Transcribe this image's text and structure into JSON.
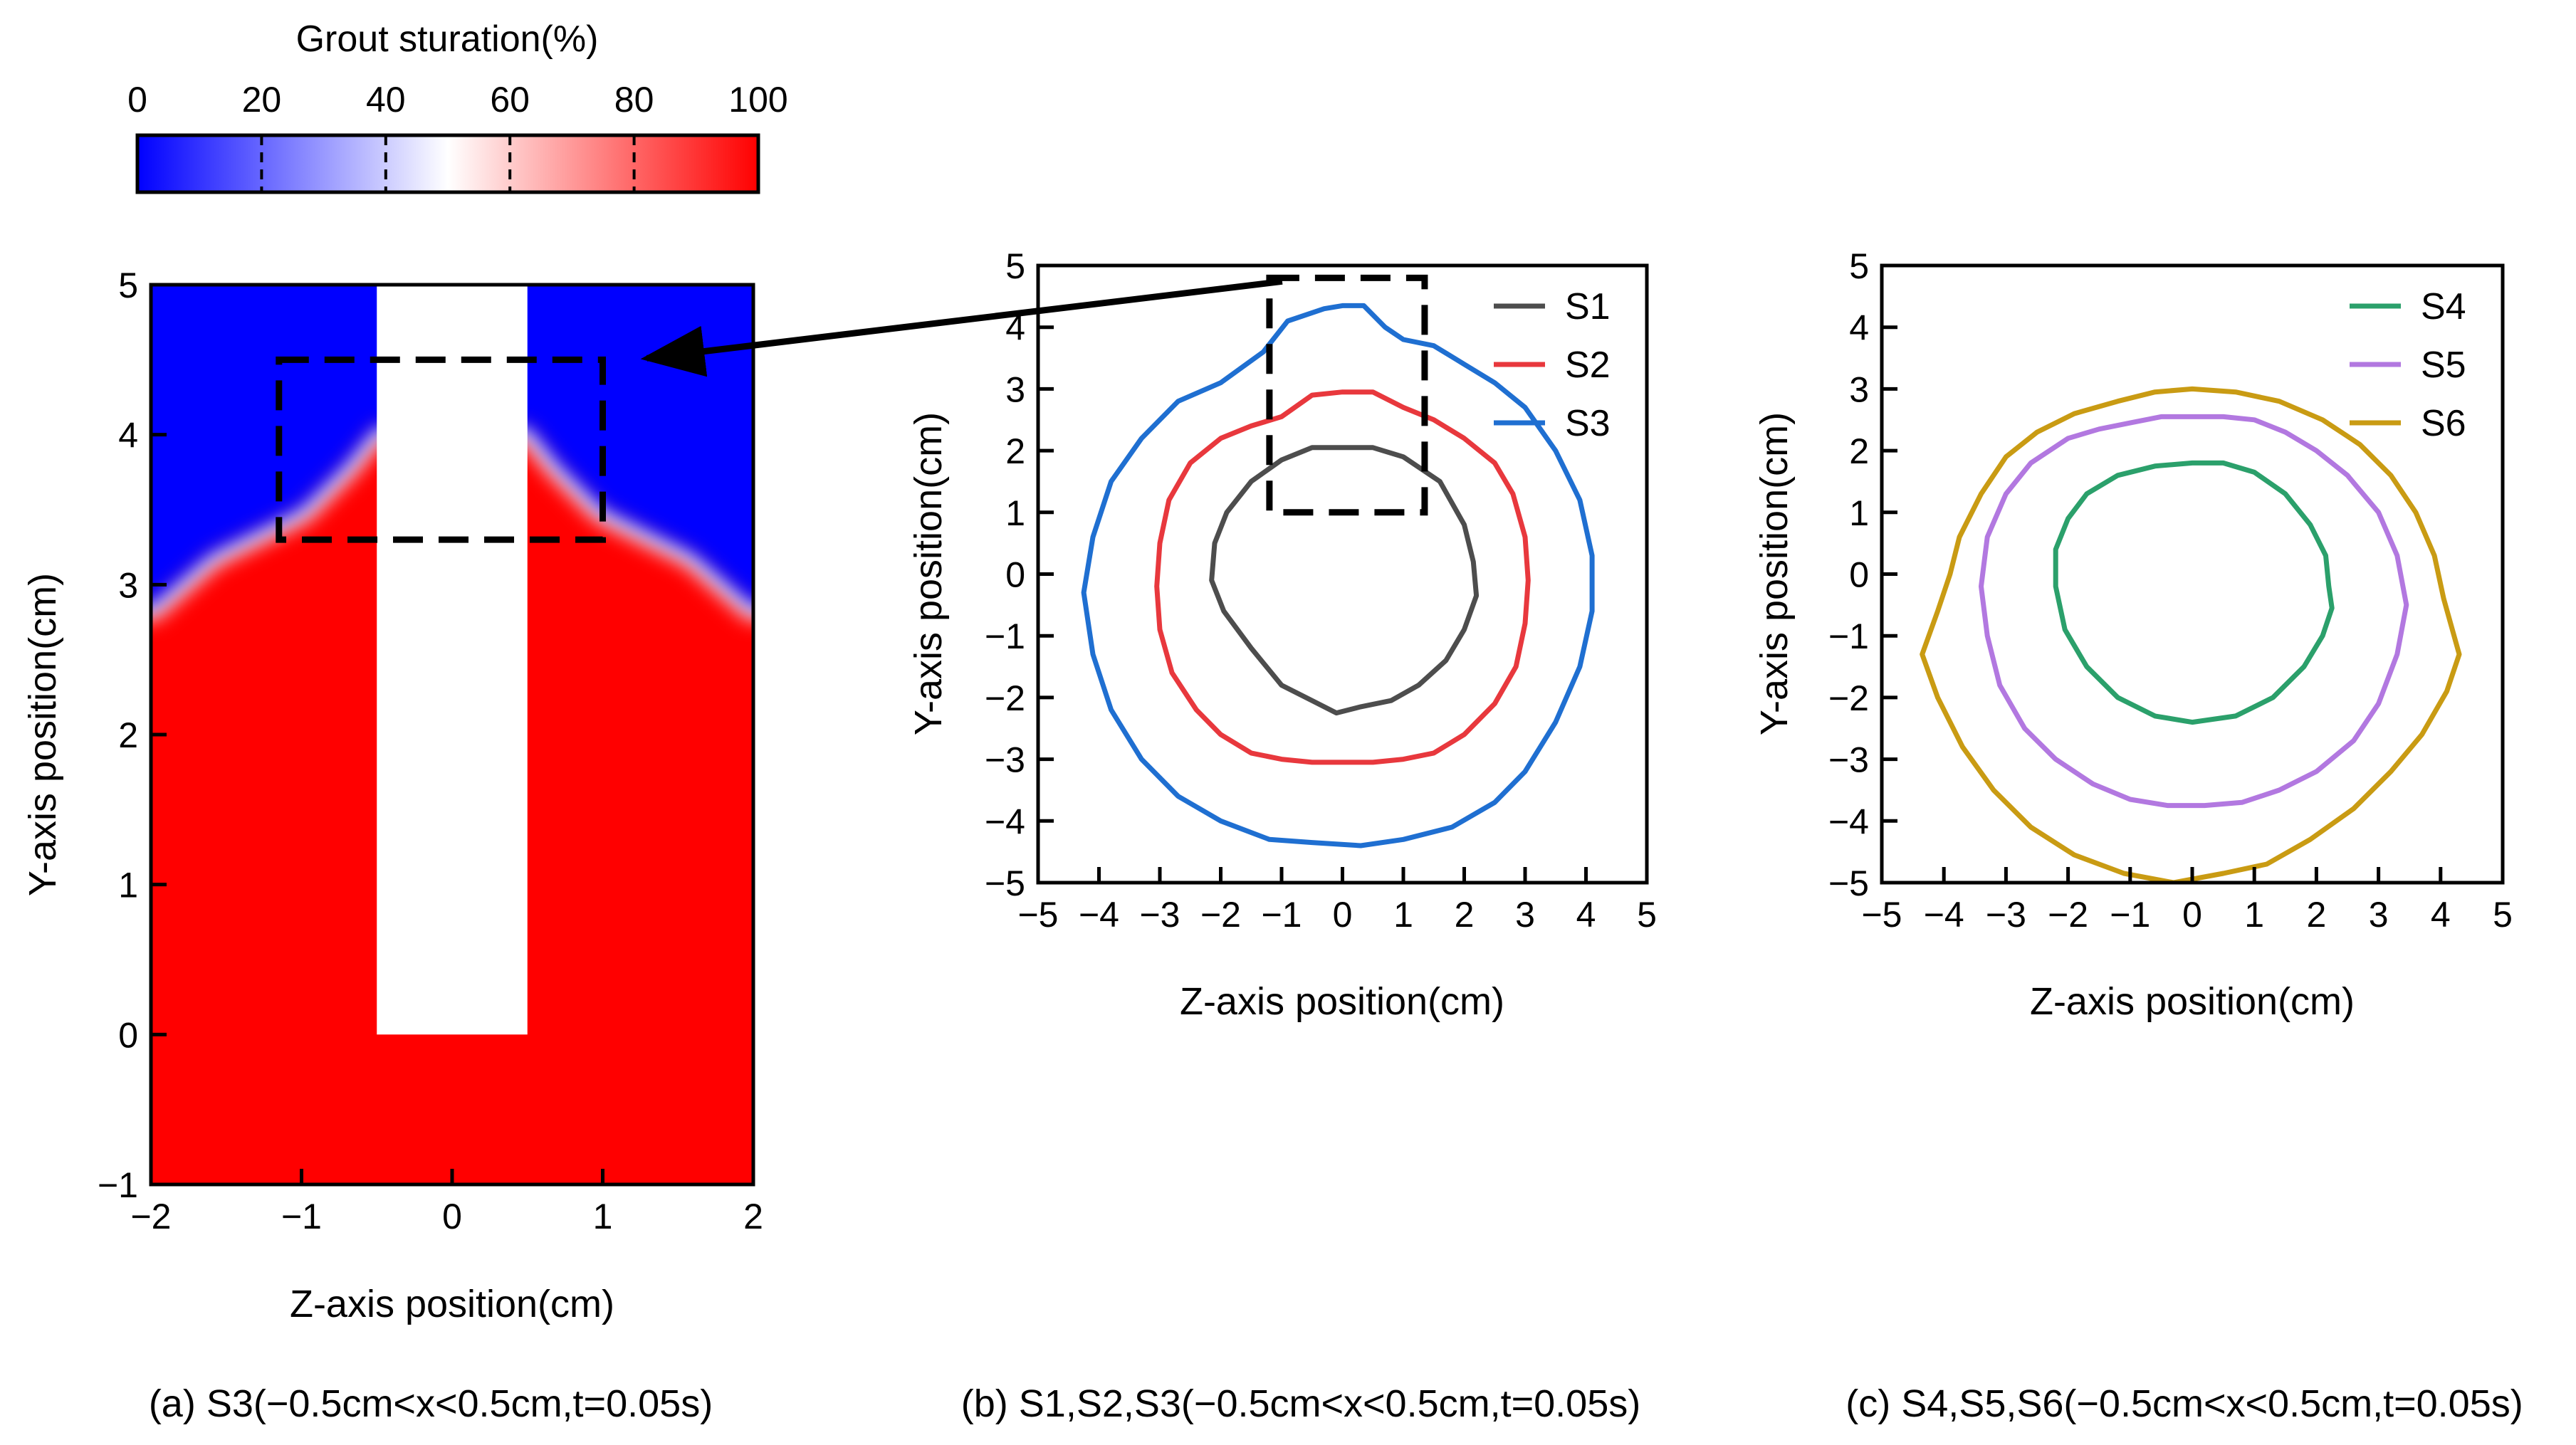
{
  "figure": {
    "colorbar": {
      "title": "Grout sturation(%)",
      "ticks": [
        "0",
        "20",
        "40",
        "60",
        "80",
        "100"
      ],
      "colors": [
        "#0000ff",
        "#ffffff",
        "#ff0000"
      ]
    },
    "captions": {
      "a": "(a) S3(−0.5cm<x<0.5cm,t=0.05s)",
      "b": "(b) S1,S2,S3(−0.5cm<x<0.5cm,t=0.05s)",
      "c": "(c) S4,S5,S6(−0.5cm<x<0.5cm,t=0.05s)"
    }
  },
  "chart_data": [
    {
      "id": "a",
      "type": "heatmap",
      "title": "",
      "xlabel": "Z-axis position(cm)",
      "ylabel": "Y-axis position(cm)",
      "xlim": [
        -2,
        2
      ],
      "ylim": [
        -1,
        5
      ],
      "xticks": [
        -2,
        -1,
        0,
        1,
        2
      ],
      "yticks": [
        -1,
        0,
        1,
        2,
        3,
        4,
        5
      ],
      "xtick_labels": [
        "−2",
        "−1",
        "0",
        "1",
        "2"
      ],
      "ytick_labels": [
        "−1",
        "0",
        "1",
        "2",
        "3",
        "4",
        "5"
      ],
      "value_range": [
        0,
        100
      ],
      "saturation_front": {
        "z": [
          -2,
          -1.6,
          -1.2,
          -1.0,
          -0.7,
          -0.5,
          0.5,
          0.7,
          1.0,
          1.2,
          1.6,
          2
        ],
        "y": [
          2.85,
          3.2,
          3.4,
          3.5,
          3.8,
          4.05,
          4.05,
          3.8,
          3.5,
          3.4,
          3.2,
          2.85
        ]
      },
      "above_front_value": 0,
      "below_front_value": 100,
      "injection_pipe": {
        "z": [
          -0.5,
          0.5
        ],
        "y": [
          0,
          5
        ]
      },
      "zoom_box": {
        "z": [
          -1.15,
          1.0
        ],
        "y": [
          3.3,
          4.5
        ]
      }
    },
    {
      "id": "b",
      "type": "line",
      "title": "",
      "xlabel": "Z-axis position(cm)",
      "ylabel": "Y-axis position(cm)",
      "xlim": [
        -5,
        5
      ],
      "ylim": [
        -5,
        5
      ],
      "xticks": [
        -5,
        -4,
        -3,
        -2,
        -1,
        0,
        1,
        2,
        3,
        4,
        5
      ],
      "yticks": [
        -5,
        -4,
        -3,
        -2,
        -1,
        0,
        1,
        2,
        3,
        4,
        5
      ],
      "xtick_labels": [
        "−5",
        "−4",
        "−3",
        "−2",
        "−1",
        "0",
        "1",
        "2",
        "3",
        "4",
        "5"
      ],
      "ytick_labels": [
        "−5",
        "−4",
        "−3",
        "−2",
        "−1",
        "0",
        "1",
        "2",
        "3",
        "4",
        "5"
      ],
      "legend_position": "top-right",
      "zoom_box": {
        "z": [
          -1.2,
          1.35
        ],
        "y": [
          1.0,
          4.8
        ]
      },
      "series": [
        {
          "name": "S1",
          "color": "#4d4d4d",
          "curve": "closed",
          "points": [
            [
              0,
              2.05
            ],
            [
              0.5,
              2.05
            ],
            [
              1.0,
              1.9
            ],
            [
              1.6,
              1.5
            ],
            [
              2.0,
              0.8
            ],
            [
              2.15,
              0.2
            ],
            [
              2.2,
              -0.35
            ],
            [
              2.0,
              -0.9
            ],
            [
              1.7,
              -1.4
            ],
            [
              1.25,
              -1.8
            ],
            [
              0.8,
              -2.05
            ],
            [
              0.3,
              -2.15
            ],
            [
              -0.1,
              -2.25
            ],
            [
              -0.5,
              -2.05
            ],
            [
              -1.0,
              -1.8
            ],
            [
              -1.5,
              -1.2
            ],
            [
              -1.95,
              -0.6
            ],
            [
              -2.15,
              -0.1
            ],
            [
              -2.1,
              0.5
            ],
            [
              -1.9,
              1.0
            ],
            [
              -1.5,
              1.5
            ],
            [
              -1.0,
              1.85
            ],
            [
              -0.5,
              2.05
            ]
          ]
        },
        {
          "name": "S2",
          "color": "#e8383d",
          "curve": "closed",
          "points": [
            [
              0,
              2.95
            ],
            [
              0.5,
              2.95
            ],
            [
              1.0,
              2.7
            ],
            [
              1.5,
              2.5
            ],
            [
              2.0,
              2.2
            ],
            [
              2.5,
              1.8
            ],
            [
              2.8,
              1.3
            ],
            [
              3.0,
              0.6
            ],
            [
              3.05,
              -0.1
            ],
            [
              3.0,
              -0.8
            ],
            [
              2.85,
              -1.5
            ],
            [
              2.5,
              -2.1
            ],
            [
              2.0,
              -2.6
            ],
            [
              1.5,
              -2.9
            ],
            [
              1.0,
              -3.0
            ],
            [
              0.5,
              -3.05
            ],
            [
              0,
              -3.05
            ],
            [
              -0.5,
              -3.05
            ],
            [
              -1.0,
              -3.0
            ],
            [
              -1.5,
              -2.9
            ],
            [
              -2.0,
              -2.6
            ],
            [
              -2.4,
              -2.2
            ],
            [
              -2.8,
              -1.6
            ],
            [
              -3.0,
              -0.9
            ],
            [
              -3.05,
              -0.2
            ],
            [
              -3.0,
              0.5
            ],
            [
              -2.85,
              1.2
            ],
            [
              -2.5,
              1.8
            ],
            [
              -2.0,
              2.2
            ],
            [
              -1.5,
              2.4
            ],
            [
              -1.0,
              2.55
            ],
            [
              -0.5,
              2.9
            ]
          ]
        },
        {
          "name": "S3",
          "color": "#1f6fd1",
          "curve": "closed",
          "points": [
            [
              0,
              4.35
            ],
            [
              0.35,
              4.35
            ],
            [
              0.7,
              4.0
            ],
            [
              1.0,
              3.8
            ],
            [
              1.5,
              3.7
            ],
            [
              2.0,
              3.4
            ],
            [
              2.5,
              3.1
            ],
            [
              3.0,
              2.7
            ],
            [
              3.5,
              2.0
            ],
            [
              3.9,
              1.2
            ],
            [
              4.1,
              0.3
            ],
            [
              4.1,
              -0.6
            ],
            [
              3.9,
              -1.5
            ],
            [
              3.5,
              -2.4
            ],
            [
              3.0,
              -3.2
            ],
            [
              2.5,
              -3.7
            ],
            [
              1.8,
              -4.1
            ],
            [
              1.0,
              -4.3
            ],
            [
              0.3,
              -4.4
            ],
            [
              -0.5,
              -4.35
            ],
            [
              -1.2,
              -4.3
            ],
            [
              -2.0,
              -4.0
            ],
            [
              -2.7,
              -3.6
            ],
            [
              -3.3,
              -3.0
            ],
            [
              -3.8,
              -2.2
            ],
            [
              -4.1,
              -1.3
            ],
            [
              -4.25,
              -0.3
            ],
            [
              -4.1,
              0.6
            ],
            [
              -3.8,
              1.5
            ],
            [
              -3.3,
              2.2
            ],
            [
              -2.7,
              2.8
            ],
            [
              -2.0,
              3.1
            ],
            [
              -1.3,
              3.6
            ],
            [
              -0.9,
              4.1
            ],
            [
              -0.3,
              4.3
            ]
          ]
        }
      ]
    },
    {
      "id": "c",
      "type": "line",
      "title": "",
      "xlabel": "Z-axis position(cm)",
      "ylabel": "Y-axis position(cm)",
      "xlim": [
        -5,
        5
      ],
      "ylim": [
        -5,
        5
      ],
      "xticks": [
        -5,
        -4,
        -3,
        -2,
        -1,
        0,
        1,
        2,
        3,
        4,
        5
      ],
      "yticks": [
        -5,
        -4,
        -3,
        -2,
        -1,
        0,
        1,
        2,
        3,
        4,
        5
      ],
      "xtick_labels": [
        "−5",
        "−4",
        "−3",
        "−2",
        "−1",
        "0",
        "1",
        "2",
        "3",
        "4",
        "5"
      ],
      "ytick_labels": [
        "−5",
        "−4",
        "−3",
        "−2",
        "−1",
        "0",
        "1",
        "2",
        "3",
        "4",
        "5"
      ],
      "legend_position": "top-right",
      "series": [
        {
          "name": "S4",
          "color": "#2ba06b",
          "curve": "closed",
          "points": [
            [
              0,
              1.8
            ],
            [
              0.5,
              1.8
            ],
            [
              1.0,
              1.65
            ],
            [
              1.5,
              1.3
            ],
            [
              1.9,
              0.8
            ],
            [
              2.15,
              0.3
            ],
            [
              2.2,
              -0.2
            ],
            [
              2.25,
              -0.55
            ],
            [
              2.1,
              -1.0
            ],
            [
              1.8,
              -1.5
            ],
            [
              1.3,
              -2.0
            ],
            [
              0.7,
              -2.3
            ],
            [
              0,
              -2.4
            ],
            [
              -0.6,
              -2.3
            ],
            [
              -1.2,
              -2.0
            ],
            [
              -1.7,
              -1.5
            ],
            [
              -2.05,
              -0.9
            ],
            [
              -2.2,
              -0.2
            ],
            [
              -2.2,
              0.4
            ],
            [
              -2.0,
              0.9
            ],
            [
              -1.7,
              1.3
            ],
            [
              -1.2,
              1.6
            ],
            [
              -0.6,
              1.75
            ]
          ]
        },
        {
          "name": "S5",
          "color": "#b278e0",
          "curve": "closed",
          "points": [
            [
              0,
              2.55
            ],
            [
              0.5,
              2.55
            ],
            [
              1.0,
              2.5
            ],
            [
              1.5,
              2.3
            ],
            [
              2.0,
              2.0
            ],
            [
              2.5,
              1.6
            ],
            [
              3.0,
              1.0
            ],
            [
              3.3,
              0.3
            ],
            [
              3.45,
              -0.5
            ],
            [
              3.3,
              -1.3
            ],
            [
              3.0,
              -2.1
            ],
            [
              2.6,
              -2.7
            ],
            [
              2.0,
              -3.2
            ],
            [
              1.4,
              -3.5
            ],
            [
              0.8,
              -3.7
            ],
            [
              0.2,
              -3.75
            ],
            [
              -0.4,
              -3.75
            ],
            [
              -1.0,
              -3.65
            ],
            [
              -1.6,
              -3.4
            ],
            [
              -2.2,
              -3.0
            ],
            [
              -2.7,
              -2.5
            ],
            [
              -3.1,
              -1.8
            ],
            [
              -3.3,
              -1.0
            ],
            [
              -3.4,
              -0.2
            ],
            [
              -3.3,
              0.6
            ],
            [
              -3.0,
              1.3
            ],
            [
              -2.6,
              1.8
            ],
            [
              -2.0,
              2.2
            ],
            [
              -1.5,
              2.35
            ],
            [
              -1.0,
              2.45
            ],
            [
              -0.5,
              2.55
            ]
          ]
        },
        {
          "name": "S6",
          "color": "#c99b13",
          "curve": "closed",
          "points": [
            [
              0,
              3.0
            ],
            [
              0.7,
              2.95
            ],
            [
              1.4,
              2.8
            ],
            [
              2.1,
              2.5
            ],
            [
              2.7,
              2.1
            ],
            [
              3.2,
              1.6
            ],
            [
              3.6,
              1.0
            ],
            [
              3.9,
              0.3
            ],
            [
              4.05,
              -0.4
            ],
            [
              4.3,
              -1.3
            ],
            [
              4.1,
              -1.9
            ],
            [
              3.7,
              -2.6
            ],
            [
              3.2,
              -3.2
            ],
            [
              2.6,
              -3.8
            ],
            [
              1.9,
              -4.3
            ],
            [
              1.2,
              -4.7
            ],
            [
              0.5,
              -4.85
            ],
            [
              -0.3,
              -5.0
            ],
            [
              -1.1,
              -4.85
            ],
            [
              -1.9,
              -4.55
            ],
            [
              -2.6,
              -4.1
            ],
            [
              -3.2,
              -3.5
            ],
            [
              -3.7,
              -2.8
            ],
            [
              -4.1,
              -2.0
            ],
            [
              -4.35,
              -1.3
            ],
            [
              -4.1,
              -0.6
            ],
            [
              -3.9,
              0.0
            ],
            [
              -3.75,
              0.6
            ],
            [
              -3.4,
              1.3
            ],
            [
              -3.0,
              1.9
            ],
            [
              -2.5,
              2.3
            ],
            [
              -1.9,
              2.6
            ],
            [
              -1.2,
              2.8
            ],
            [
              -0.6,
              2.95
            ]
          ]
        }
      ]
    }
  ]
}
